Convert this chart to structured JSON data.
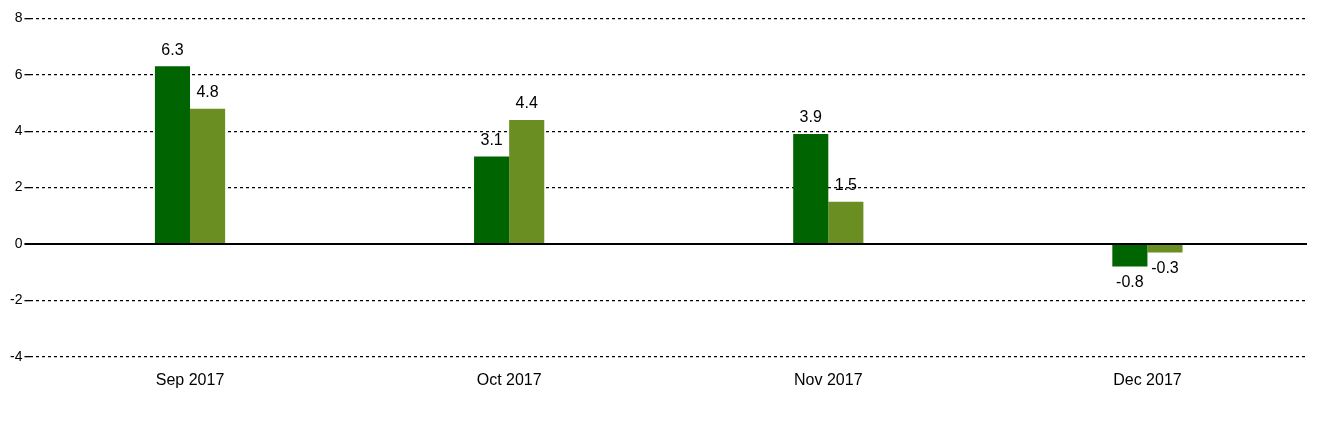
{
  "chart_data": {
    "type": "bar",
    "categories": [
      "Sep 2017",
      "Oct 2017",
      "Nov 2017",
      "Dec 2017"
    ],
    "series": [
      {
        "color": "#006400",
        "values": [
          6.3,
          3.1,
          3.9,
          -0.8
        ]
      },
      {
        "color": "#6b8e23",
        "values": [
          4.8,
          4.4,
          1.5,
          -0.3
        ]
      }
    ],
    "ylim": [
      -4,
      8
    ],
    "yticks": [
      -4,
      -2,
      0,
      2,
      4,
      6,
      8
    ],
    "grid": "y",
    "data_labels": true
  }
}
